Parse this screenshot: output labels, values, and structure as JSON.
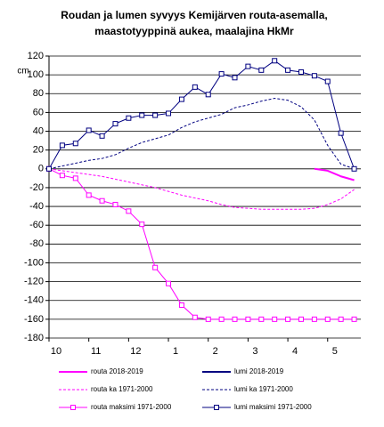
{
  "chart_data": {
    "type": "line",
    "title": [
      "Roudan ja lumen syvyys Kemijärven routa-asemalla,",
      "maastotyyppinä aukea, maalajina HkMr"
    ],
    "ylabel": "cm",
    "x": [
      0,
      1,
      2,
      3,
      4,
      5,
      6,
      7,
      8,
      9,
      10,
      11,
      12,
      13,
      14,
      15,
      16,
      17,
      18,
      19,
      20,
      21,
      22,
      23
    ],
    "xlim": [
      0,
      23.5
    ],
    "xticks": [
      {
        "value": 0,
        "label": "10"
      },
      {
        "value": 3,
        "label": "11"
      },
      {
        "value": 6,
        "label": "12"
      },
      {
        "value": 9,
        "label": "1"
      },
      {
        "value": 12,
        "label": "2"
      },
      {
        "value": 15,
        "label": "3"
      },
      {
        "value": 18,
        "label": "4"
      },
      {
        "value": 21,
        "label": "5"
      }
    ],
    "ylim": [
      -180,
      120
    ],
    "yticks": [
      -180,
      -160,
      -140,
      -120,
      -100,
      -80,
      -60,
      -40,
      -20,
      0,
      20,
      40,
      60,
      80,
      100,
      120
    ],
    "grid": true,
    "legend": "bottom",
    "series": [
      {
        "name": "routa 2018-2019",
        "color": "#ff00ff",
        "dash": false,
        "marker": "none",
        "width": 2,
        "values": [
          null,
          null,
          null,
          null,
          null,
          null,
          null,
          null,
          null,
          null,
          null,
          null,
          null,
          null,
          null,
          null,
          null,
          null,
          null,
          null,
          0,
          -2,
          -8,
          -12
        ]
      },
      {
        "name": "lumi 2018-2019",
        "color": "#000080",
        "dash": false,
        "marker": "none",
        "width": 2,
        "values": [
          null,
          null,
          null,
          null,
          null,
          null,
          null,
          null,
          null,
          null,
          null,
          null,
          null,
          null,
          null,
          null,
          null,
          null,
          null,
          null,
          null,
          null,
          null,
          null
        ]
      },
      {
        "name": "routa ka 1971-2000",
        "color": "#ff00ff",
        "dash": true,
        "marker": "none",
        "width": 1,
        "values": [
          0,
          -2,
          -4,
          -6,
          -8,
          -11,
          -14,
          -17,
          -20,
          -24,
          -28,
          -31,
          -34,
          -38,
          -41,
          -42,
          -43,
          -43,
          -43,
          -43,
          -42,
          -38,
          -32,
          -22
        ]
      },
      {
        "name": "lumi ka 1971-2000",
        "color": "#000080",
        "dash": true,
        "marker": "none",
        "width": 1,
        "values": [
          0,
          3,
          6,
          9,
          11,
          15,
          22,
          28,
          32,
          36,
          44,
          50,
          54,
          58,
          65,
          68,
          72,
          75,
          73,
          66,
          52,
          25,
          5,
          0
        ]
      },
      {
        "name": "routa maksimi 1971-2000",
        "color": "#ff00ff",
        "dash": false,
        "marker": "square",
        "width": 1,
        "values": [
          0,
          -7,
          -10,
          -28,
          -34,
          -38,
          -45,
          -59,
          -105,
          -122,
          -145,
          -158,
          -160,
          -160,
          -160,
          -160,
          -160,
          -160,
          -160,
          -160,
          -160,
          -160,
          -160,
          -160
        ]
      },
      {
        "name": "lumi maksimi 1971-2000",
        "color": "#000080",
        "dash": false,
        "marker": "square",
        "width": 1,
        "values": [
          0,
          25,
          27,
          41,
          35,
          48,
          54,
          57,
          57,
          59,
          74,
          87,
          79,
          101,
          97,
          109,
          105,
          115,
          105,
          103,
          99,
          93,
          38,
          0
        ]
      }
    ]
  }
}
